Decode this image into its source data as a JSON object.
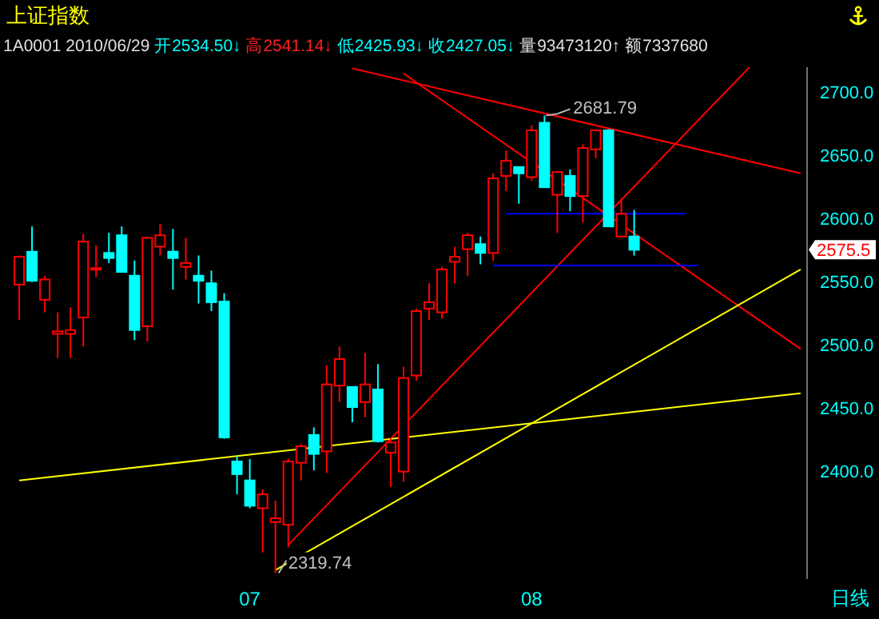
{
  "chart_data": {
    "type": "candlestick",
    "title": "上证指数",
    "subtitle": "1A0001 2010/06/29 开2534.50↓ 高2541.14↓ 低2425.93↓ 收2427.05↓ 量93473120↑ 额7337680",
    "categories": [
      null,
      null,
      null,
      null,
      null,
      null,
      null,
      null,
      null,
      null,
      null,
      null,
      null,
      null,
      null,
      null,
      null,
      null,
      "07",
      null,
      null,
      null,
      null,
      null,
      null,
      null,
      null,
      null,
      null,
      null,
      null,
      null,
      null,
      null,
      null,
      null,
      null,
      null,
      null,
      null,
      "08",
      null,
      null,
      null,
      null,
      null,
      null,
      null,
      null,
      null,
      null,
      null,
      null,
      null,
      null,
      null,
      null,
      null,
      null,
      null,
      null,
      null
    ],
    "ohlc": [
      [
        2548,
        2571,
        2520,
        2570
      ],
      [
        2574,
        2594,
        2550,
        2551
      ],
      [
        2536,
        2555,
        2526,
        2552
      ],
      [
        2509,
        2526,
        2490,
        2511
      ],
      [
        2509,
        2530,
        2490,
        2512
      ],
      [
        2522,
        2588,
        2499,
        2582
      ],
      [
        2560,
        2579,
        2554,
        2561
      ],
      [
        2573,
        2589,
        2565,
        2569
      ],
      [
        2587,
        2594,
        2558,
        2558
      ],
      [
        2555,
        2567,
        2504,
        2512
      ],
      [
        2515,
        2586,
        2503,
        2585
      ],
      [
        2578,
        2596,
        2571,
        2587
      ],
      [
        2574,
        2592,
        2544,
        2569
      ],
      [
        2562,
        2585,
        2552,
        2565
      ],
      [
        2555,
        2571,
        2533,
        2551
      ],
      [
        2549,
        2559,
        2527,
        2534
      ],
      [
        2534.5,
        2541.14,
        2425.93,
        2427.05
      ],
      [
        2408,
        2412,
        2382,
        2398
      ],
      [
        2393,
        2410,
        2371,
        2373
      ],
      [
        2371,
        2386,
        2336,
        2382
      ],
      [
        2360,
        2377,
        2319.74,
        2363
      ],
      [
        2358,
        2410,
        2340,
        2408
      ],
      [
        2407,
        2422,
        2393,
        2420
      ],
      [
        2429,
        2435,
        2401,
        2414
      ],
      [
        2416,
        2484,
        2399,
        2469
      ],
      [
        2468,
        2499,
        2455,
        2489
      ],
      [
        2467,
        2467,
        2439,
        2451
      ],
      [
        2455,
        2494,
        2443,
        2469
      ],
      [
        2465,
        2485,
        2423,
        2424
      ],
      [
        2415,
        2427,
        2388,
        2423
      ],
      [
        2400,
        2483,
        2392,
        2474
      ],
      [
        2476,
        2529,
        2472,
        2527
      ],
      [
        2529,
        2549,
        2520,
        2534
      ],
      [
        2526,
        2562,
        2521,
        2560
      ],
      [
        2566,
        2578,
        2549,
        2570
      ],
      [
        2576,
        2589,
        2555,
        2587
      ],
      [
        2580,
        2586,
        2564,
        2573
      ],
      [
        2573,
        2636,
        2567,
        2632
      ],
      [
        2634,
        2654,
        2622,
        2646
      ],
      [
        2641,
        2641,
        2612,
        2636
      ],
      [
        2633,
        2674,
        2630,
        2670
      ],
      [
        2676,
        2681.79,
        2625,
        2625
      ],
      [
        2619,
        2637,
        2589,
        2637
      ],
      [
        2634,
        2639,
        2606,
        2618
      ],
      [
        2618,
        2659,
        2597,
        2656
      ],
      [
        2655,
        2671,
        2648,
        2670
      ],
      [
        2670,
        2671,
        2594,
        2594
      ],
      [
        2586,
        2616,
        2586,
        2604
      ],
      [
        2586,
        2607,
        2571,
        2575.5
      ],
      null,
      null,
      null,
      null,
      null,
      null,
      null,
      null,
      null,
      null,
      null,
      null,
      null
    ],
    "colors": [
      "#ff0000",
      "#00ffff",
      "#ff0000",
      "#ff0000",
      "#ff0000",
      "#ff0000",
      "#ff0000",
      "#00ffff",
      "#00ffff",
      "#00ffff",
      "#ff0000",
      "#ff0000",
      "#00ffff",
      "#ff0000",
      "#00ffff",
      "#00ffff",
      "#00ffff",
      "#00ffff",
      "#00ffff",
      "#ff0000",
      "#ff0000",
      "#ff0000",
      "#ff0000",
      "#00ffff",
      "#ff0000",
      "#ff0000",
      "#00ffff",
      "#ff0000",
      "#00ffff",
      "#ff0000",
      "#ff0000",
      "#ff0000",
      "#ff0000",
      "#ff0000",
      "#ff0000",
      "#ff0000",
      "#00ffff",
      "#ff0000",
      "#ff0000",
      "#00ffff",
      "#ff0000",
      "#00ffff",
      "#ff0000",
      "#00ffff",
      "#ff0000",
      "#ff0000",
      "#00ffff",
      "#ff0000",
      "#00ffff",
      null,
      null,
      null,
      null,
      null,
      null,
      null,
      null,
      null,
      null,
      null,
      null,
      null
    ],
    "series": [
      {
        "type": "line",
        "color": "#ff0000",
        "values": [
          null,
          null,
          null,
          null,
          null,
          null,
          null,
          null,
          null,
          null,
          null,
          null,
          null,
          null,
          null,
          null,
          null,
          null,
          null,
          null,
          null,
          null,
          null,
          null,
          null,
          null,
          2719,
          null,
          null,
          null,
          null,
          null,
          null,
          null,
          null,
          null,
          null,
          null,
          null,
          null,
          null,
          null,
          null,
          null,
          null,
          null,
          null,
          null,
          null,
          null,
          null,
          null,
          null,
          null,
          null,
          null,
          null,
          null,
          null,
          null,
          null,
          2636
        ]
      },
      {
        "type": "line",
        "color": "#ff0000",
        "values": [
          null,
          null,
          null,
          null,
          null,
          null,
          null,
          null,
          null,
          null,
          null,
          null,
          null,
          null,
          null,
          null,
          null,
          null,
          null,
          null,
          null,
          2342,
          null,
          null,
          null,
          null,
          null,
          null,
          null,
          null,
          null,
          null,
          null,
          null,
          null,
          null,
          null,
          null,
          null,
          null,
          null,
          null,
          null,
          null,
          null,
          null,
          null,
          null,
          null,
          null,
          null,
          null,
          null,
          null,
          null,
          null,
          null,
          2720,
          null,
          null,
          null,
          null
        ]
      },
      {
        "type": "line",
        "color": "#ff0000",
        "values": [
          null,
          null,
          null,
          null,
          null,
          null,
          null,
          null,
          null,
          null,
          null,
          null,
          null,
          null,
          null,
          null,
          null,
          null,
          null,
          null,
          null,
          null,
          null,
          null,
          null,
          null,
          null,
          null,
          null,
          null,
          2715,
          null,
          null,
          null,
          null,
          null,
          null,
          null,
          null,
          null,
          null,
          null,
          null,
          null,
          null,
          null,
          null,
          null,
          null,
          null,
          null,
          null,
          null,
          null,
          null,
          null,
          null,
          null,
          null,
          null,
          null,
          2497
        ]
      },
      {
        "type": "line",
        "color": "#ffff00",
        "values": [
          2393,
          null,
          null,
          null,
          null,
          null,
          null,
          null,
          null,
          null,
          null,
          null,
          null,
          null,
          null,
          null,
          null,
          null,
          null,
          null,
          null,
          null,
          null,
          null,
          null,
          null,
          null,
          null,
          null,
          null,
          null,
          null,
          null,
          null,
          null,
          null,
          null,
          null,
          null,
          null,
          null,
          null,
          null,
          null,
          null,
          null,
          null,
          null,
          null,
          null,
          null,
          null,
          null,
          null,
          null,
          null,
          null,
          null,
          null,
          null,
          null,
          2462
        ]
      },
      {
        "type": "line",
        "color": "#ffff00",
        "values": [
          null,
          null,
          null,
          null,
          null,
          null,
          null,
          null,
          null,
          null,
          null,
          null,
          null,
          null,
          null,
          null,
          null,
          null,
          null,
          null,
          2322,
          null,
          null,
          null,
          null,
          null,
          null,
          null,
          null,
          null,
          null,
          null,
          null,
          null,
          null,
          null,
          null,
          null,
          null,
          null,
          null,
          null,
          null,
          null,
          null,
          null,
          null,
          null,
          null,
          null,
          null,
          null,
          null,
          null,
          null,
          null,
          null,
          null,
          null,
          null,
          null,
          2560
        ]
      },
      {
        "type": "line",
        "color": "#0000ff",
        "values": [
          null,
          null,
          null,
          null,
          null,
          null,
          null,
          null,
          null,
          null,
          null,
          null,
          null,
          null,
          null,
          null,
          null,
          null,
          null,
          null,
          null,
          null,
          null,
          null,
          null,
          null,
          null,
          null,
          null,
          null,
          null,
          null,
          null,
          null,
          null,
          null,
          null,
          null,
          2604,
          null,
          null,
          null,
          null,
          null,
          null,
          null,
          null,
          null,
          null,
          null,
          null,
          null,
          2604,
          null,
          null,
          null,
          null,
          null,
          null,
          null,
          null,
          null
        ]
      },
      {
        "type": "line",
        "color": "#0000ff",
        "values": [
          null,
          null,
          null,
          null,
          null,
          null,
          null,
          null,
          null,
          null,
          null,
          null,
          null,
          null,
          null,
          null,
          null,
          null,
          null,
          null,
          null,
          null,
          null,
          null,
          null,
          null,
          null,
          null,
          null,
          null,
          null,
          null,
          null,
          null,
          null,
          null,
          null,
          2563,
          null,
          null,
          null,
          null,
          null,
          null,
          null,
          null,
          null,
          null,
          null,
          null,
          null,
          null,
          null,
          2563,
          null,
          null,
          null,
          null,
          null,
          null,
          null,
          null
        ]
      }
    ],
    "ylim": [
      2315,
      2720
    ],
    "yticks": [
      {
        "value": 2400,
        "label": "2400.0"
      },
      {
        "value": 2450,
        "label": "2450.0"
      },
      {
        "value": 2500,
        "label": "2500.0"
      },
      {
        "value": 2550,
        "label": "2550.0"
      },
      {
        "value": 2600,
        "label": "2600.0"
      },
      {
        "value": 2650,
        "label": "2650.0"
      },
      {
        "value": 2700,
        "label": "2700.0"
      }
    ],
    "annotations": [
      "2681.79",
      "2319.74",
      "2575.5",
      "日线"
    ]
  }
}
